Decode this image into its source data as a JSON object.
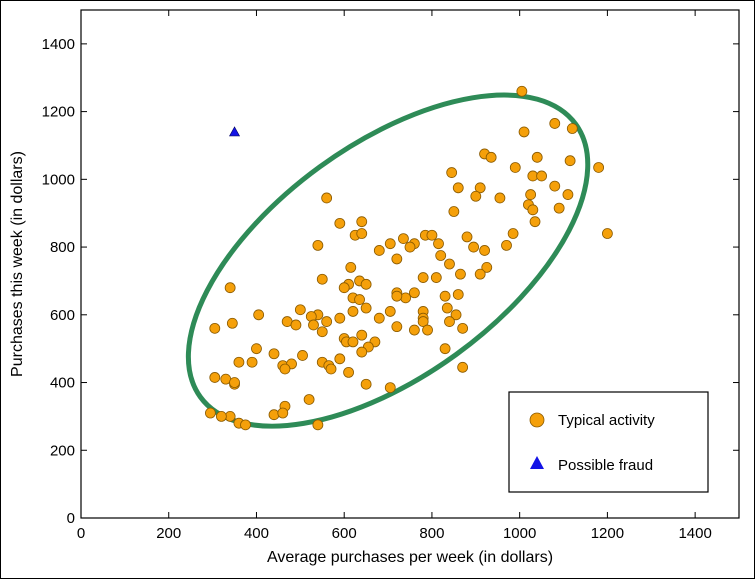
{
  "chart_data": {
    "type": "scatter",
    "title": "",
    "xlabel": "Average purchases per week (in dollars)",
    "ylabel": "Purchases this week (in dollars)",
    "xlim": [
      0,
      1500
    ],
    "ylim": [
      0,
      1500
    ],
    "xticks": [
      0,
      200,
      400,
      600,
      800,
      1000,
      1200,
      1400
    ],
    "yticks": [
      0,
      200,
      400,
      600,
      800,
      1000,
      1200,
      1400
    ],
    "grid": false,
    "legend_position": "lower-right",
    "ellipse": {
      "center": [
        700,
        760
      ],
      "color": "#2e8b57"
    },
    "series": [
      {
        "name": "Typical activity",
        "marker": "circle",
        "color": "#f5a00a",
        "points": [
          [
            1005,
            1260
          ],
          [
            1080,
            1165
          ],
          [
            1120,
            1150
          ],
          [
            1010,
            1140
          ],
          [
            1040,
            1065
          ],
          [
            1115,
            1055
          ],
          [
            920,
            1075
          ],
          [
            935,
            1065
          ],
          [
            1180,
            1035
          ],
          [
            990,
            1035
          ],
          [
            845,
            1020
          ],
          [
            1030,
            1010
          ],
          [
            1050,
            1010
          ],
          [
            1080,
            980
          ],
          [
            860,
            975
          ],
          [
            910,
            975
          ],
          [
            1025,
            955
          ],
          [
            1110,
            955
          ],
          [
            900,
            950
          ],
          [
            955,
            945
          ],
          [
            560,
            945
          ],
          [
            1020,
            925
          ],
          [
            1030,
            910
          ],
          [
            850,
            905
          ],
          [
            1090,
            915
          ],
          [
            1035,
            875
          ],
          [
            590,
            870
          ],
          [
            640,
            875
          ],
          [
            880,
            830
          ],
          [
            625,
            835
          ],
          [
            640,
            840
          ],
          [
            735,
            825
          ],
          [
            785,
            835
          ],
          [
            800,
            835
          ],
          [
            760,
            810
          ],
          [
            705,
            810
          ],
          [
            680,
            790
          ],
          [
            985,
            840
          ],
          [
            970,
            805
          ],
          [
            895,
            800
          ],
          [
            540,
            805
          ],
          [
            815,
            810
          ],
          [
            750,
            800
          ],
          [
            920,
            790
          ],
          [
            820,
            775
          ],
          [
            720,
            765
          ],
          [
            1200,
            840
          ],
          [
            615,
            740
          ],
          [
            840,
            750
          ],
          [
            925,
            740
          ],
          [
            910,
            720
          ],
          [
            865,
            720
          ],
          [
            810,
            710
          ],
          [
            780,
            710
          ],
          [
            550,
            705
          ],
          [
            635,
            700
          ],
          [
            610,
            690
          ],
          [
            600,
            680
          ],
          [
            340,
            680
          ],
          [
            650,
            690
          ],
          [
            720,
            665
          ],
          [
            760,
            665
          ],
          [
            740,
            650
          ],
          [
            720,
            655
          ],
          [
            830,
            655
          ],
          [
            860,
            660
          ],
          [
            620,
            650
          ],
          [
            635,
            645
          ],
          [
            835,
            620
          ],
          [
            855,
            600
          ],
          [
            705,
            610
          ],
          [
            780,
            610
          ],
          [
            650,
            620
          ],
          [
            620,
            610
          ],
          [
            500,
            615
          ],
          [
            540,
            600
          ],
          [
            405,
            600
          ],
          [
            525,
            595
          ],
          [
            590,
            590
          ],
          [
            680,
            590
          ],
          [
            780,
            590
          ],
          [
            780,
            580
          ],
          [
            470,
            580
          ],
          [
            560,
            580
          ],
          [
            840,
            580
          ],
          [
            490,
            570
          ],
          [
            305,
            560
          ],
          [
            345,
            575
          ],
          [
            530,
            570
          ],
          [
            720,
            565
          ],
          [
            760,
            555
          ],
          [
            790,
            555
          ],
          [
            870,
            560
          ],
          [
            550,
            550
          ],
          [
            640,
            540
          ],
          [
            600,
            530
          ],
          [
            670,
            520
          ],
          [
            605,
            520
          ],
          [
            620,
            520
          ],
          [
            655,
            505
          ],
          [
            440,
            485
          ],
          [
            830,
            500
          ],
          [
            505,
            480
          ],
          [
            400,
            500
          ],
          [
            590,
            470
          ],
          [
            640,
            490
          ],
          [
            550,
            460
          ],
          [
            360,
            460
          ],
          [
            390,
            460
          ],
          [
            460,
            450
          ],
          [
            480,
            455
          ],
          [
            565,
            450
          ],
          [
            570,
            440
          ],
          [
            305,
            415
          ],
          [
            330,
            410
          ],
          [
            350,
            395
          ],
          [
            350,
            400
          ],
          [
            465,
            440
          ],
          [
            870,
            445
          ],
          [
            610,
            430
          ],
          [
            650,
            395
          ],
          [
            705,
            385
          ],
          [
            520,
            350
          ],
          [
            465,
            330
          ],
          [
            295,
            310
          ],
          [
            340,
            300
          ],
          [
            320,
            300
          ],
          [
            440,
            305
          ],
          [
            460,
            310
          ],
          [
            360,
            280
          ],
          [
            375,
            275
          ],
          [
            540,
            275
          ]
        ]
      },
      {
        "name": "Possible fraud",
        "marker": "triangle",
        "color": "#1414e6",
        "points": [
          [
            350,
            1140
          ]
        ]
      }
    ]
  }
}
